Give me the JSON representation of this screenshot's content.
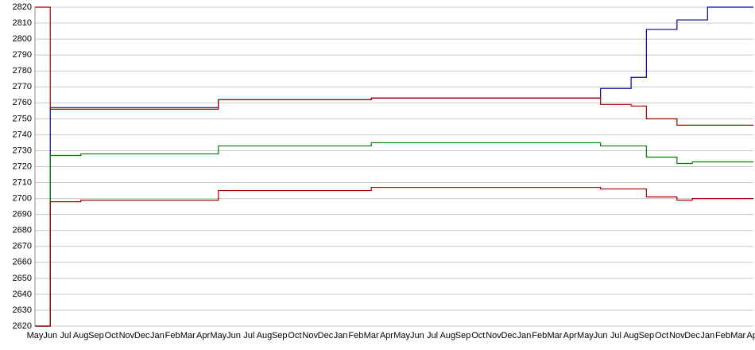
{
  "chart_data": {
    "type": "line",
    "categories": [
      "May",
      "Jun",
      "Jul",
      "Aug",
      "Sep",
      "Oct",
      "Nov",
      "Dec",
      "Jan",
      "Feb",
      "Mar",
      "Apr",
      "May",
      "Jun",
      "Jul",
      "Aug",
      "Sep",
      "Oct",
      "Nov",
      "Dec",
      "Jan",
      "Feb",
      "Mar",
      "Apr",
      "May",
      "Jun",
      "Jul",
      "Aug",
      "Sep",
      "Oct",
      "Nov",
      "Dec",
      "Jan",
      "Feb",
      "Mar",
      "Apr",
      "May",
      "Jun",
      "Jul",
      "Aug",
      "Sep",
      "Oct",
      "Nov",
      "Dec",
      "Jan",
      "Feb",
      "Mar",
      "Apr"
    ],
    "series": [
      {
        "color": "#0000a0",
        "values": [
          2620,
          2757,
          2757,
          2757,
          2757,
          2757,
          2757,
          2757,
          2757,
          2757,
          2757,
          2757,
          2762,
          2762,
          2762,
          2762,
          2762,
          2762,
          2762,
          2762,
          2762,
          2762,
          2763,
          2763,
          2763,
          2763,
          2763,
          2763,
          2763,
          2763,
          2763,
          2763,
          2763,
          2763,
          2763,
          2763,
          2763,
          2769,
          2769,
          2776,
          2806,
          2806,
          2812,
          2812,
          2820,
          2820,
          2820,
          2820
        ]
      },
      {
        "color": "#a00000",
        "values": [
          2820,
          2756,
          2756,
          2756,
          2756,
          2756,
          2756,
          2756,
          2756,
          2756,
          2756,
          2756,
          2762,
          2762,
          2762,
          2762,
          2762,
          2762,
          2762,
          2762,
          2762,
          2762,
          2763,
          2763,
          2763,
          2763,
          2763,
          2763,
          2763,
          2763,
          2763,
          2763,
          2763,
          2763,
          2763,
          2763,
          2763,
          2759,
          2759,
          2758,
          2750,
          2750,
          2746,
          2746,
          2746,
          2746,
          2746,
          2746
        ]
      },
      {
        "color": "#008000",
        "values": [
          2620,
          2727,
          2727,
          2728,
          2728,
          2728,
          2728,
          2728,
          2728,
          2728,
          2728,
          2728,
          2733,
          2733,
          2733,
          2733,
          2733,
          2733,
          2733,
          2733,
          2733,
          2733,
          2735,
          2735,
          2735,
          2735,
          2735,
          2735,
          2735,
          2735,
          2735,
          2735,
          2735,
          2735,
          2735,
          2735,
          2735,
          2733,
          2733,
          2733,
          2726,
          2726,
          2722,
          2723,
          2723,
          2723,
          2723,
          2723
        ]
      },
      {
        "color": "#a00000",
        "values": [
          2620,
          2698,
          2698,
          2699,
          2699,
          2699,
          2699,
          2699,
          2699,
          2699,
          2699,
          2699,
          2705,
          2705,
          2705,
          2705,
          2705,
          2705,
          2705,
          2705,
          2705,
          2705,
          2707,
          2707,
          2707,
          2707,
          2707,
          2707,
          2707,
          2707,
          2707,
          2707,
          2707,
          2707,
          2707,
          2707,
          2707,
          2706,
          2706,
          2706,
          2701,
          2701,
          2699,
          2700,
          2700,
          2700,
          2700,
          2700
        ]
      }
    ],
    "ylim": [
      2620,
      2820
    ],
    "yticks": [
      2620,
      2630,
      2640,
      2650,
      2660,
      2670,
      2680,
      2690,
      2700,
      2710,
      2720,
      2730,
      2740,
      2750,
      2760,
      2770,
      2780,
      2790,
      2800,
      2810,
      2820
    ],
    "grid": true
  }
}
